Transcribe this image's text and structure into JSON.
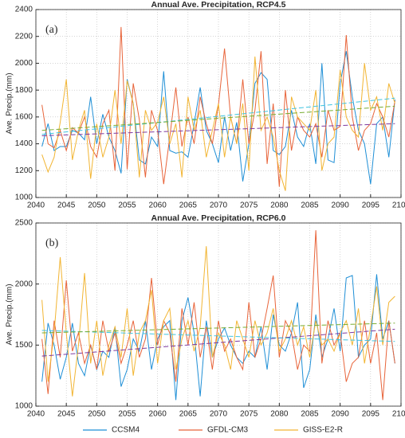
{
  "chart_data": [
    {
      "type": "line",
      "title": "Annual Ave. Precipitation, RCP4.5",
      "ylabel": "Ave. Precip.(mm)",
      "annotation": "(a)",
      "x": [
        2041,
        2042,
        2043,
        2044,
        2045,
        2046,
        2047,
        2048,
        2049,
        2050,
        2051,
        2052,
        2053,
        2054,
        2055,
        2056,
        2057,
        2058,
        2059,
        2060,
        2061,
        2062,
        2063,
        2064,
        2065,
        2066,
        2067,
        2068,
        2069,
        2070,
        2071,
        2072,
        2073,
        2074,
        2075,
        2076,
        2077,
        2078,
        2079,
        2080,
        2081,
        2082,
        2083,
        2084,
        2085,
        2086,
        2087,
        2088,
        2089,
        2090,
        2091,
        2092,
        2093,
        2094,
        2095,
        2096,
        2097,
        2098,
        2099
      ],
      "xlim": [
        2040,
        2100
      ],
      "xticks": [
        2040,
        2045,
        2050,
        2055,
        2060,
        2065,
        2070,
        2075,
        2080,
        2085,
        2090,
        2095,
        2100
      ],
      "ylim": [
        1000,
        2400
      ],
      "yticks": [
        1000,
        1200,
        1400,
        1600,
        1800,
        2000,
        2200,
        2400
      ],
      "grid": true,
      "series": [
        {
          "name": "CCSM4",
          "color": "#1f8fd6",
          "trend": [
            1470,
            1740
          ],
          "trend_color": "#3fc4e0",
          "values": [
            1380,
            1550,
            1350,
            1380,
            1380,
            1500,
            1480,
            1430,
            1750,
            1400,
            1620,
            1450,
            1350,
            1180,
            1880,
            1700,
            1280,
            1250,
            1450,
            1380,
            1940,
            1350,
            1330,
            1340,
            1300,
            1550,
            1820,
            1500,
            1400,
            1260,
            1600,
            1350,
            1560,
            1120,
            1400,
            1850,
            1930,
            1880,
            1350,
            1320,
            1380,
            1650,
            1450,
            1380,
            1550,
            1250,
            2000,
            1280,
            1260,
            1850,
            2090,
            1750,
            1500,
            1400,
            1100,
            1550,
            1600,
            1300,
            1730
          ]
        },
        {
          "name": "GFDL-CM3",
          "color": "#e8643a",
          "trend": [
            1460,
            1550
          ],
          "trend_color": "#7e3a9e",
          "values": [
            1690,
            1400,
            1370,
            1500,
            1350,
            1520,
            1480,
            1600,
            1380,
            1300,
            1550,
            1650,
            1200,
            2270,
            1210,
            1850,
            1580,
            1150,
            1650,
            1500,
            1100,
            1450,
            1820,
            1380,
            1600,
            1400,
            1750,
            1550,
            1400,
            1690,
            2110,
            1600,
            1400,
            1880,
            1400,
            1650,
            2090,
            1250,
            1700,
            1080,
            1800,
            1350,
            1600,
            1500,
            1450,
            1550,
            1300,
            1650,
            1500,
            1530,
            2210,
            1600,
            1350,
            1500,
            1550,
            1700,
            1600,
            1450,
            1720
          ]
        },
        {
          "name": "GISS-E2-R",
          "color": "#f2b533",
          "trend": [
            1500,
            1680
          ],
          "trend_color": "#77ac30",
          "values": [
            1320,
            1190,
            1300,
            1560,
            1880,
            1280,
            1500,
            1650,
            1140,
            1550,
            1300,
            1450,
            1800,
            1400,
            1870,
            1700,
            1150,
            1650,
            1500,
            1560,
            1750,
            1400,
            1550,
            1150,
            1750,
            1500,
            1650,
            1300,
            1500,
            1700,
            1300,
            1600,
            1400,
            1700,
            1200,
            2050,
            1500,
            1600,
            1450,
            1200,
            1050,
            1750,
            1600,
            1550,
            1500,
            1800,
            1200,
            1400,
            1450,
            1950,
            1600,
            1500,
            1450,
            2000,
            1650,
            1750,
            1500,
            1850,
            1700
          ]
        }
      ]
    },
    {
      "type": "line",
      "title": "Annual Ave. Precipitation, RCP6.0",
      "ylabel": "Ave. Precip.(mm)",
      "annotation": "(b)",
      "x": [
        2041,
        2042,
        2043,
        2044,
        2045,
        2046,
        2047,
        2048,
        2049,
        2050,
        2051,
        2052,
        2053,
        2054,
        2055,
        2056,
        2057,
        2058,
        2059,
        2060,
        2061,
        2062,
        2063,
        2064,
        2065,
        2066,
        2067,
        2068,
        2069,
        2070,
        2071,
        2072,
        2073,
        2074,
        2075,
        2076,
        2077,
        2078,
        2079,
        2080,
        2081,
        2082,
        2083,
        2084,
        2085,
        2086,
        2087,
        2088,
        2089,
        2090,
        2091,
        2092,
        2093,
        2094,
        2095,
        2096,
        2097,
        2098,
        2099
      ],
      "xlim": [
        2040,
        2100
      ],
      "xticks": [
        2040,
        2045,
        2050,
        2055,
        2060,
        2065,
        2070,
        2075,
        2080,
        2085,
        2090,
        2095,
        2100
      ],
      "ylim": [
        1000,
        2500
      ],
      "yticks": [
        1000,
        1500,
        2000,
        2500
      ],
      "grid": true,
      "legend": "bottom",
      "series": [
        {
          "name": "CCSM4",
          "color": "#1f8fd6",
          "trend": [
            1410,
            1630
          ],
          "trend_color": "#7e3a9e",
          "values": [
            1200,
            1680,
            1500,
            1220,
            1400,
            1680,
            1350,
            1250,
            1500,
            1300,
            1450,
            1400,
            1650,
            1160,
            1300,
            1550,
            1450,
            1700,
            1300,
            1550,
            1650,
            1700,
            1050,
            1700,
            1890,
            1600,
            1080,
            1700,
            1400,
            1550,
            1640,
            1500,
            1400,
            1350,
            1450,
            1400,
            1650,
            1300,
            1750,
            1500,
            1450,
            1600,
            1850,
            1150,
            1300,
            1750,
            1400,
            1550,
            1800,
            1450,
            2050,
            2070,
            1400,
            1500,
            1550,
            2080,
            1550,
            1700,
            1350
          ]
        },
        {
          "name": "GFDL-CM3",
          "color": "#e8643a",
          "trend": [
            1620,
            1530
          ],
          "trend_color": "#3fc4e0",
          "values": [
            1550,
            1100,
            1700,
            1400,
            2030,
            1450,
            1600,
            1350,
            1500,
            1300,
            1700,
            1450,
            1600,
            1350,
            1500,
            1700,
            1400,
            1550,
            2050,
            1500,
            1700,
            1600,
            1200,
            1800,
            1500,
            1850,
            1400,
            1650,
            1300,
            1700,
            1450,
            1550,
            1400,
            1300,
            1850,
            1400,
            1550,
            1800,
            2070,
            1400,
            1700,
            1600,
            1300,
            1500,
            1450,
            2440,
            1350,
            1700,
            1500,
            1600,
            1200,
            1350,
            1400,
            1700,
            1350,
            1600,
            1050,
            1700,
            1350
          ]
        },
        {
          "name": "GISS-E2-R",
          "color": "#f2b533",
          "trend": [
            1600,
            1680
          ],
          "trend_color": "#77ac30",
          "values": [
            1870,
            1200,
            1600,
            2220,
            1600,
            1080,
            1500,
            2090,
            1350,
            1700,
            1250,
            1500,
            1650,
            1400,
            1800,
            1250,
            1600,
            1700,
            1950,
            1350,
            1700,
            1800,
            1300,
            1550,
            1700,
            1450,
            1650,
            2310,
            1400,
            1600,
            1500,
            1300,
            1700,
            1550,
            1400,
            1700,
            1500,
            1600,
            1800,
            1450,
            1550,
            1700,
            1500,
            1650,
            1400,
            1700,
            1500,
            1550,
            1450,
            1600,
            1700,
            1500,
            1800,
            1350,
            1650,
            1980,
            1500,
            1850,
            1900
          ]
        }
      ]
    }
  ]
}
